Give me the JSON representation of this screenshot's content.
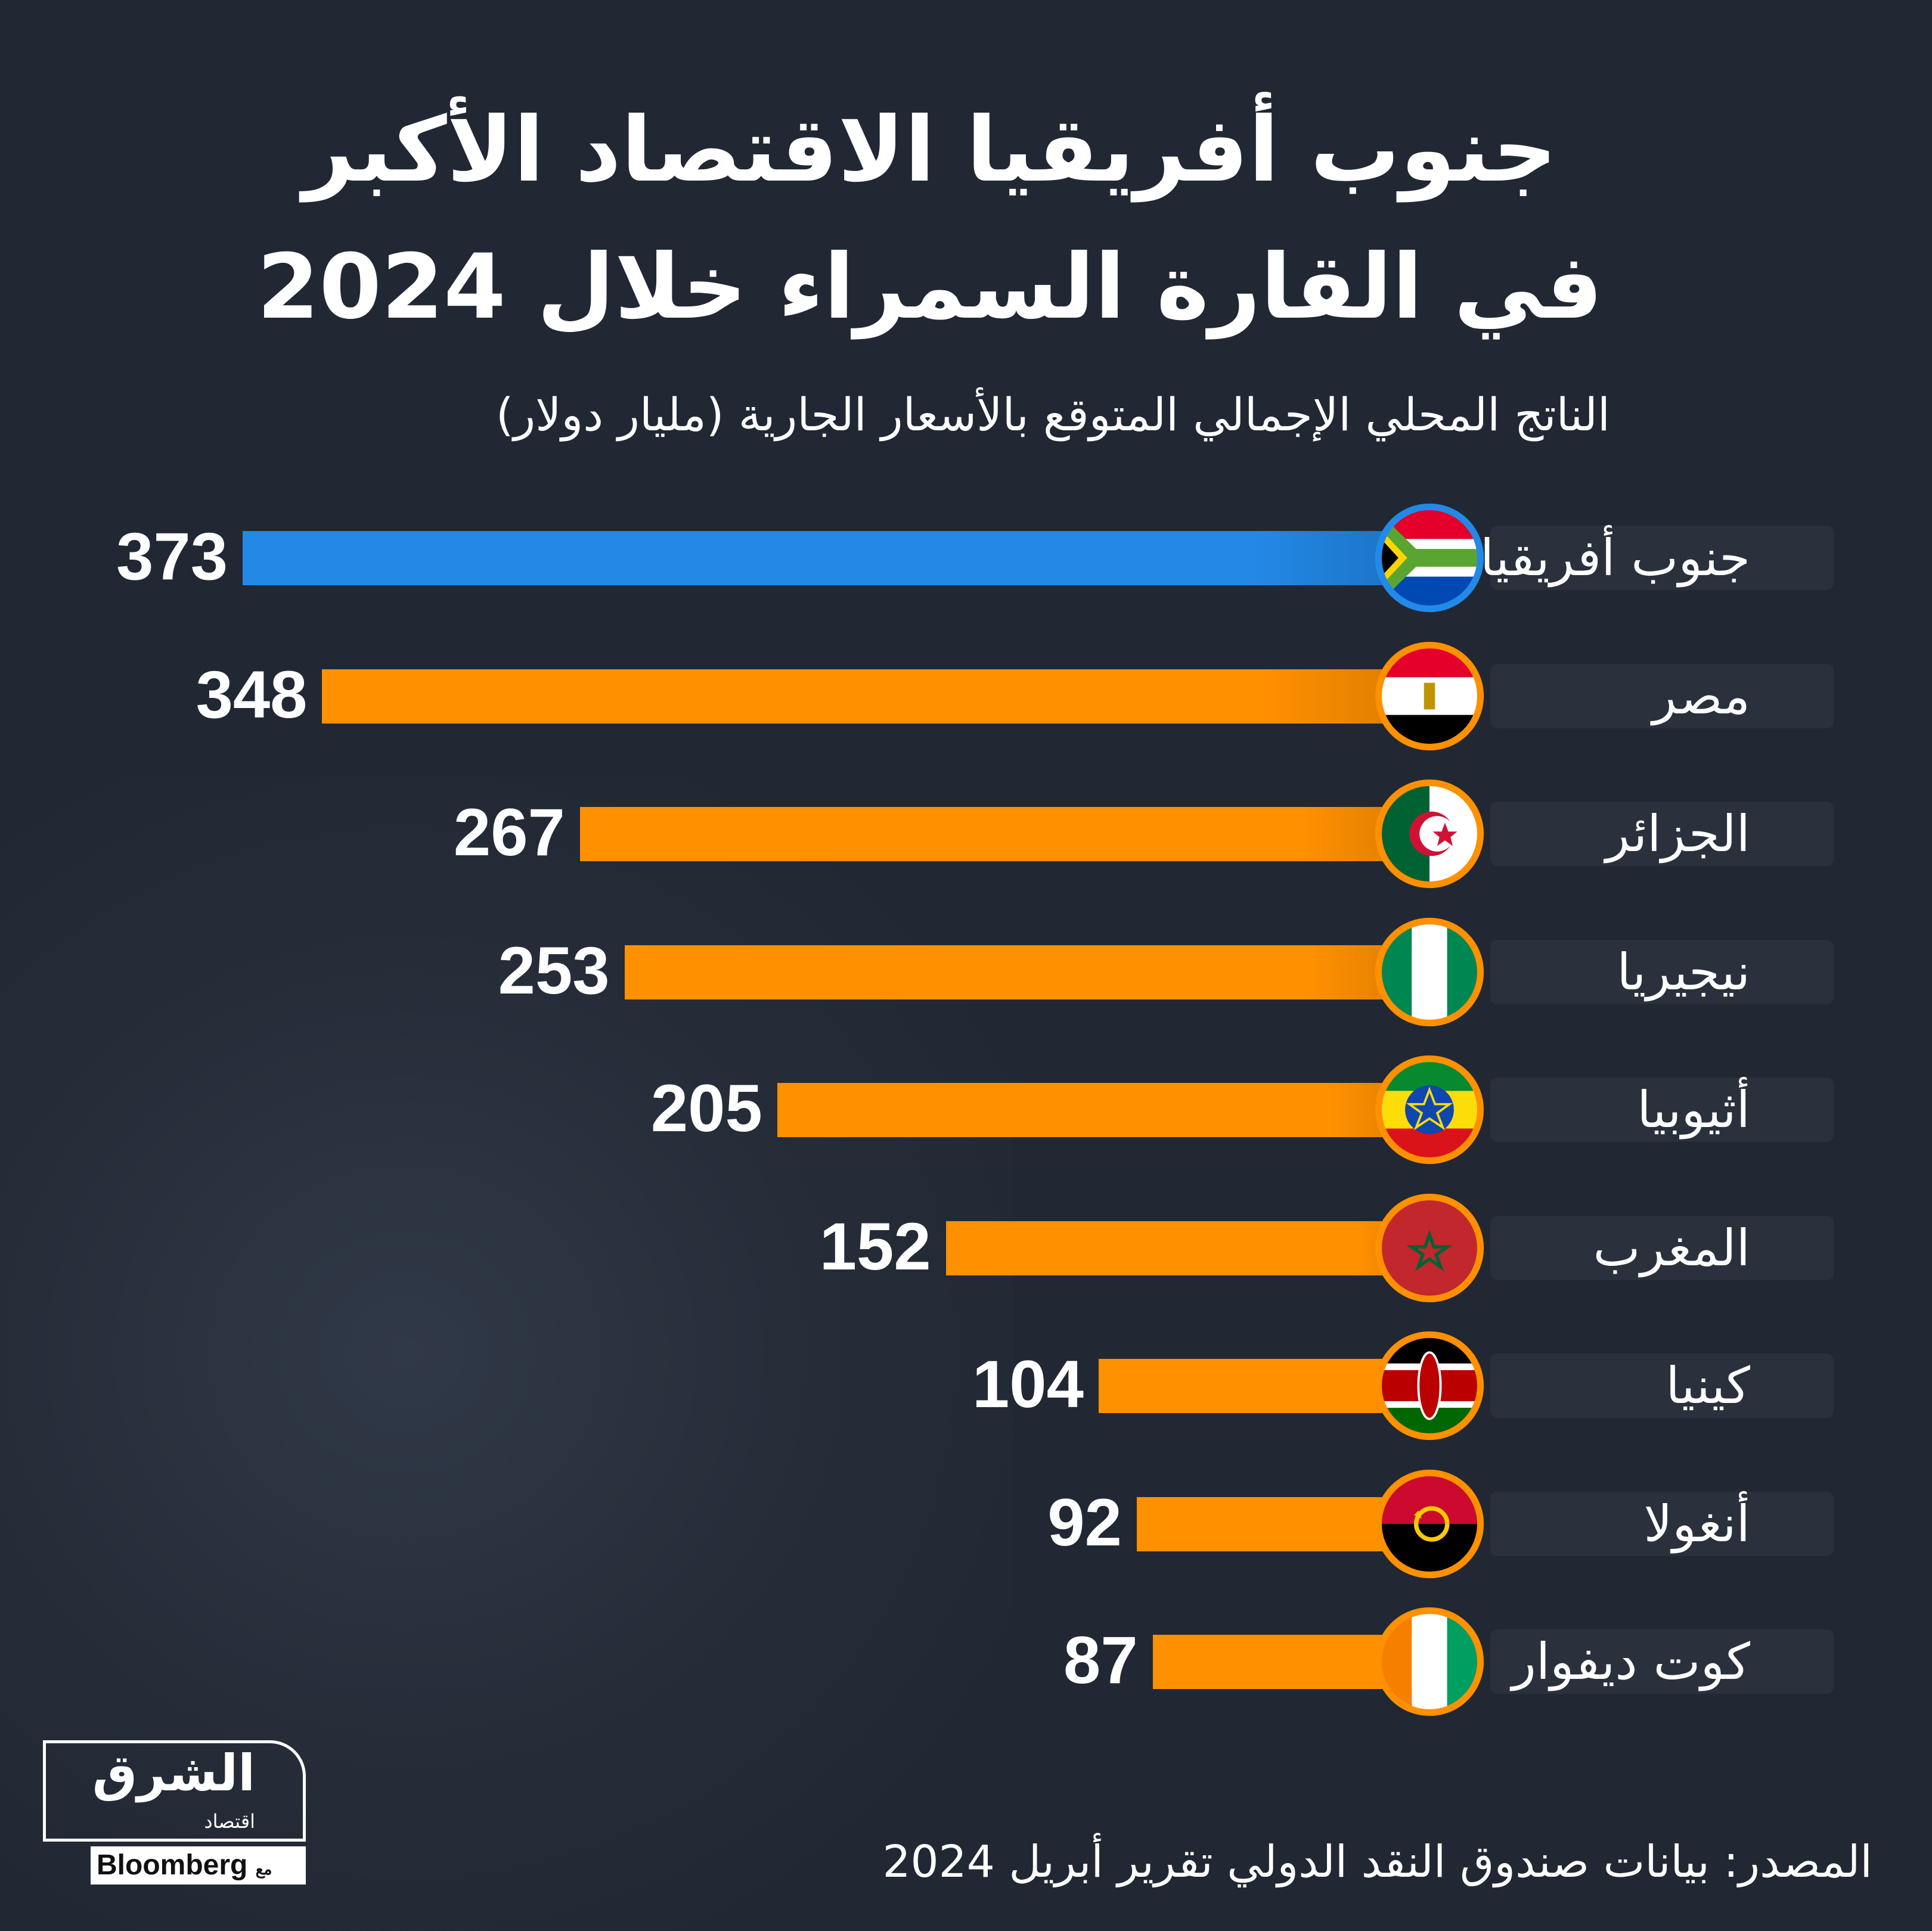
{
  "title_line1": "جنوب أفريقيا الاقتصاد الأكبر",
  "title_line2": "في القارة السمراء خلال 2024",
  "subtitle": "الناتج المحلي الإجمالي المتوقع بالأسعار الجارية (مليار دولار)",
  "source": "المصدر: بيانات صندوق النقد الدولي تقرير أبريل 2024",
  "logo": {
    "name": "الشرق",
    "sub": "اقتصاد",
    "partner": "Bloomberg",
    "with": "مع"
  },
  "colors": {
    "highlight": "#2389e6",
    "bar": "#ff9000",
    "background": "#212833"
  },
  "chart_data": {
    "type": "bar",
    "orientation": "horizontal",
    "title": "جنوب أفريقيا الاقتصاد الأكبر في القارة السمراء خلال 2024",
    "ylabel": "الناتج المحلي الإجمالي المتوقع بالأسعار الجارية (مليار دولار)",
    "xlim": [
      0,
      373
    ],
    "categories": [
      "جنوب أفريقيا",
      "مصر",
      "الجزائر",
      "نيجيريا",
      "أثيوبيا",
      "المغرب",
      "كينيا",
      "أنغولا",
      "كوت ديفوار"
    ],
    "flags": [
      "south-africa",
      "egypt",
      "algeria",
      "nigeria",
      "ethiopia",
      "morocco",
      "kenya",
      "angola",
      "ivory-coast"
    ],
    "values": [
      373,
      348,
      267,
      253,
      205,
      152,
      104,
      92,
      87
    ],
    "value_labels": [
      "373",
      "348",
      "267",
      "253",
      "205",
      "152",
      "104",
      "92",
      "87"
    ],
    "highlight_index": 0
  }
}
